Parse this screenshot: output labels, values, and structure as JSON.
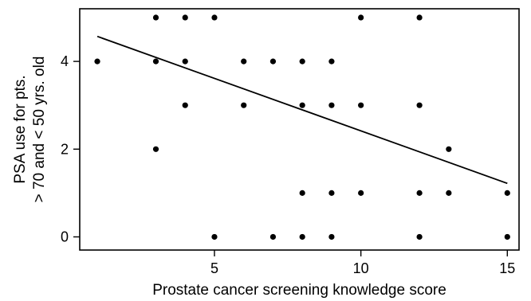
{
  "chart_data": {
    "type": "scatter",
    "xlabel": "Prostate cancer screening knowledge score",
    "ylabel_lines": [
      "PSA use for pts.",
      "> 70 and < 50 yrs. old"
    ],
    "xlim": [
      0.4,
      15.4
    ],
    "ylim": [
      -0.3,
      5.2
    ],
    "xticks": [
      5,
      10,
      15
    ],
    "yticks": [
      0,
      2,
      4
    ],
    "grid": false,
    "points": [
      {
        "x": 1,
        "y": 4
      },
      {
        "x": 3,
        "y": 5
      },
      {
        "x": 3,
        "y": 4
      },
      {
        "x": 3,
        "y": 2
      },
      {
        "x": 4,
        "y": 5
      },
      {
        "x": 4,
        "y": 4
      },
      {
        "x": 4,
        "y": 3
      },
      {
        "x": 5,
        "y": 5
      },
      {
        "x": 5,
        "y": 0
      },
      {
        "x": 6,
        "y": 4
      },
      {
        "x": 6,
        "y": 3
      },
      {
        "x": 7,
        "y": 4
      },
      {
        "x": 7,
        "y": 0
      },
      {
        "x": 8,
        "y": 4
      },
      {
        "x": 8,
        "y": 3
      },
      {
        "x": 8,
        "y": 1
      },
      {
        "x": 8,
        "y": 0
      },
      {
        "x": 9,
        "y": 4
      },
      {
        "x": 9,
        "y": 3
      },
      {
        "x": 9,
        "y": 1
      },
      {
        "x": 9,
        "y": 0
      },
      {
        "x": 10,
        "y": 5
      },
      {
        "x": 10,
        "y": 3
      },
      {
        "x": 10,
        "y": 1
      },
      {
        "x": 12,
        "y": 5
      },
      {
        "x": 12,
        "y": 3
      },
      {
        "x": 12,
        "y": 1
      },
      {
        "x": 12,
        "y": 0
      },
      {
        "x": 13,
        "y": 2
      },
      {
        "x": 13,
        "y": 1
      },
      {
        "x": 15,
        "y": 1
      },
      {
        "x": 15,
        "y": 0
      }
    ],
    "trend_line": {
      "x": [
        1,
        15
      ],
      "y": [
        4.57,
        1.22
      ]
    }
  }
}
